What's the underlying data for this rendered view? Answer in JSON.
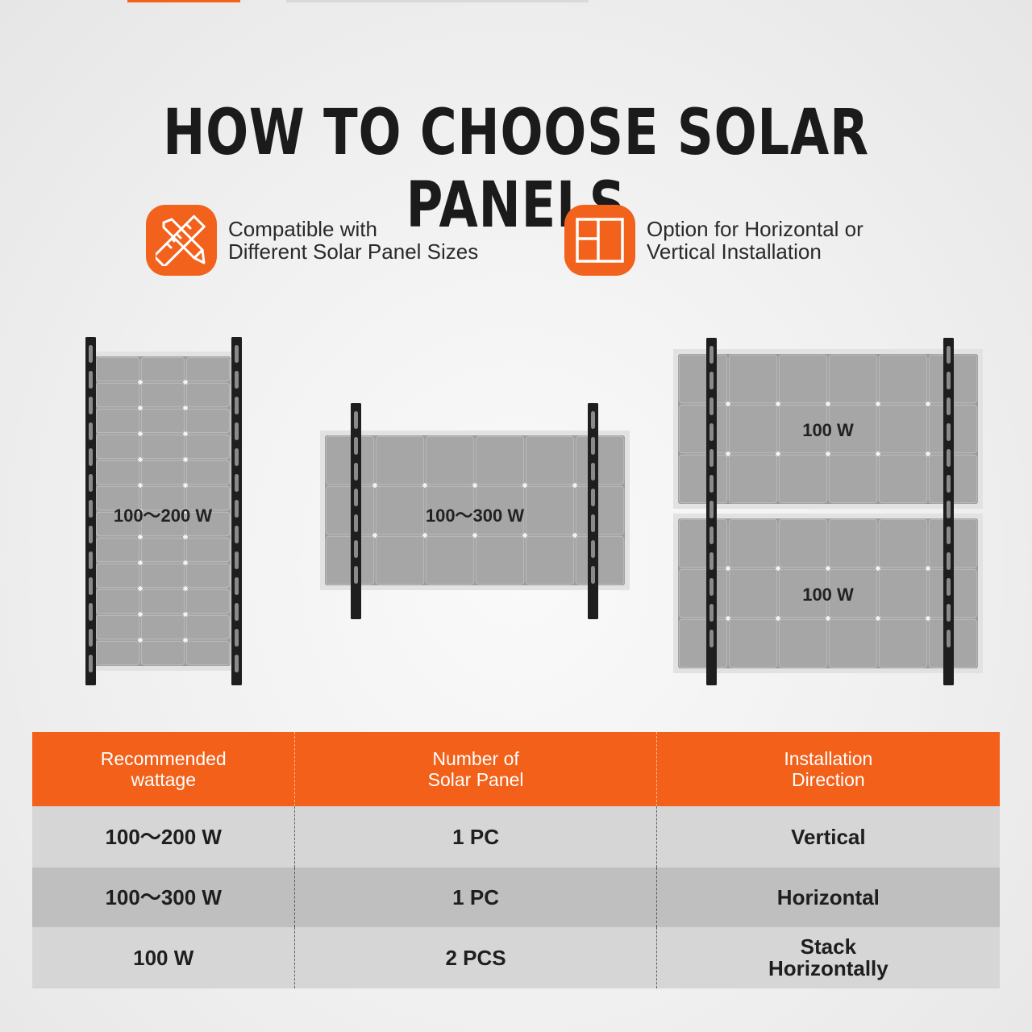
{
  "title": "HOW TO CHOOSE SOLAR PANELS",
  "colors": {
    "accent": "#f2621d",
    "row_light": "#d6d6d6",
    "row_dark": "#bfbfbf"
  },
  "features": [
    {
      "icon": "ruler-pencil-icon",
      "lines": [
        "Compatible with",
        "Different Solar Panel Sizes"
      ]
    },
    {
      "icon": "panel-layout-icon",
      "lines": [
        "Option for Horizontal or",
        "Vertical Installation"
      ]
    }
  ],
  "illustrations": {
    "vertical": {
      "label": "100～200 W"
    },
    "horizontal": {
      "label": "100～300 W"
    },
    "stacked": {
      "top_label": "100 W",
      "bottom_label": "100 W"
    }
  },
  "table": {
    "headers": [
      "Recommended\nwattage",
      "Number of\nSolar Panel",
      "Installation\nDirection"
    ],
    "rows": [
      [
        "100～200 W",
        "1 PC",
        "Vertical"
      ],
      [
        "100～300 W",
        "1 PC",
        "Horizontal"
      ],
      [
        "100 W",
        "2 PCS",
        "Stack\nHorizontally"
      ]
    ]
  }
}
